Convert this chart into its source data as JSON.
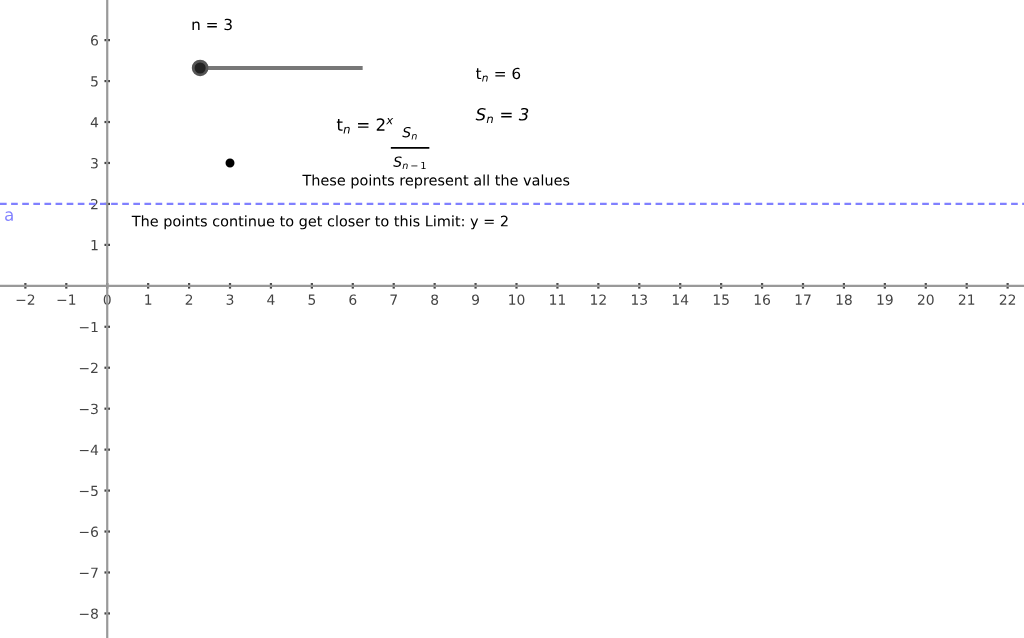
{
  "chart_data": {
    "type": "scatter",
    "x": [
      3
    ],
    "values": [
      3
    ],
    "color": "#000000",
    "xlim": [
      -2.62,
      22.4
    ],
    "ylim": [
      -8.6,
      6.98
    ],
    "xticks": [
      {
        "value": -2,
        "label": "−2"
      },
      {
        "value": -1,
        "label": "−1"
      },
      0,
      1,
      2,
      3,
      4,
      5,
      6,
      7,
      8,
      9,
      10,
      11,
      12,
      13,
      14,
      15,
      16,
      17,
      18,
      19,
      20,
      21,
      22
    ],
    "yticks": [
      {
        "value": -8,
        "label": "−8"
      },
      {
        "value": -7,
        "label": "−7"
      },
      {
        "value": -6,
        "label": "−6"
      },
      {
        "value": -5,
        "label": "−5"
      },
      {
        "value": -4,
        "label": "−4"
      },
      {
        "value": -3,
        "label": "−3"
      },
      {
        "value": -2,
        "label": "−2"
      },
      {
        "value": -1,
        "label": "−1"
      },
      1,
      2,
      3,
      4,
      5,
      6
    ],
    "grid": false,
    "ref_lines": [
      {
        "axis": "y",
        "value": 2,
        "label": "a",
        "color": "#8080ff",
        "line_style": "dashed"
      }
    ],
    "annotations": [
      "n = 3",
      "t$_{n}$ = 6",
      "S$_{n}$ = 3",
      "t$_{n}$ = 2$^{x}$",
      "S$_{n}$",
      "S$_{n−1}$",
      "These points represent all the values",
      "The points continue to get closer to this Limit: y = 2"
    ]
  }
}
